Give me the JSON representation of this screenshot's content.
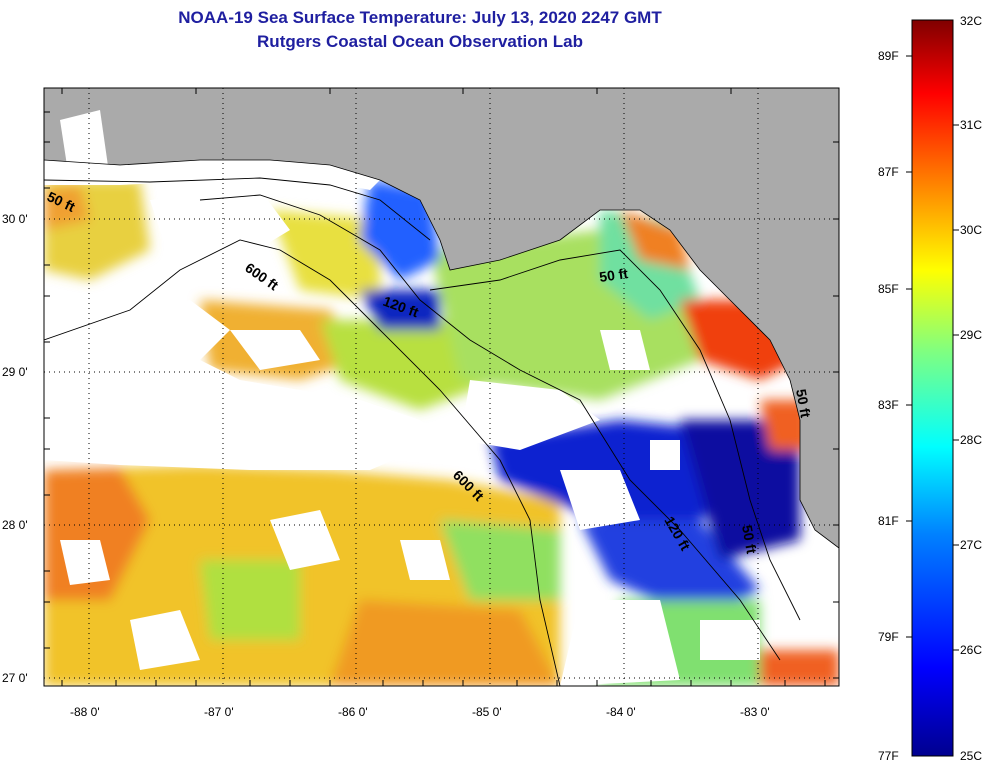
{
  "title": {
    "line1": "NOAA-19 Sea Surface Temperature:  July 13, 2020 2247 GMT",
    "line2": "Rutgers Coastal Ocean Observation Lab"
  },
  "map": {
    "longitude_ticks": [
      "-88 0'",
      "-87 0'",
      "-86 0'",
      "-85 0'",
      "-84 0'",
      "-83 0'"
    ],
    "latitude_ticks": [
      "30 0'",
      "29 0'",
      "28 0'",
      "27 0'"
    ],
    "contour_labels": [
      "50 ft",
      "600 ft",
      "120 ft",
      "50 ft",
      "600 ft",
      "120 ft",
      "50 ft",
      "50 ft"
    ],
    "colors": {
      "land": "#aaaaaa",
      "no_data": "#ffffff"
    }
  },
  "colorbar": {
    "fahrenheit_labels": [
      "89F",
      "87F",
      "85F",
      "83F",
      "81F",
      "79F",
      "77F"
    ],
    "celsius_labels": [
      "32C",
      "31C",
      "30C",
      "29C",
      "28C",
      "27C",
      "26C",
      "25C"
    ],
    "range_celsius": [
      25,
      32
    ],
    "colormap": [
      "#00008f",
      "#0000ff",
      "#0080ff",
      "#00ffff",
      "#80ff80",
      "#ffff00",
      "#ff8000",
      "#ff0000",
      "#800000"
    ]
  }
}
